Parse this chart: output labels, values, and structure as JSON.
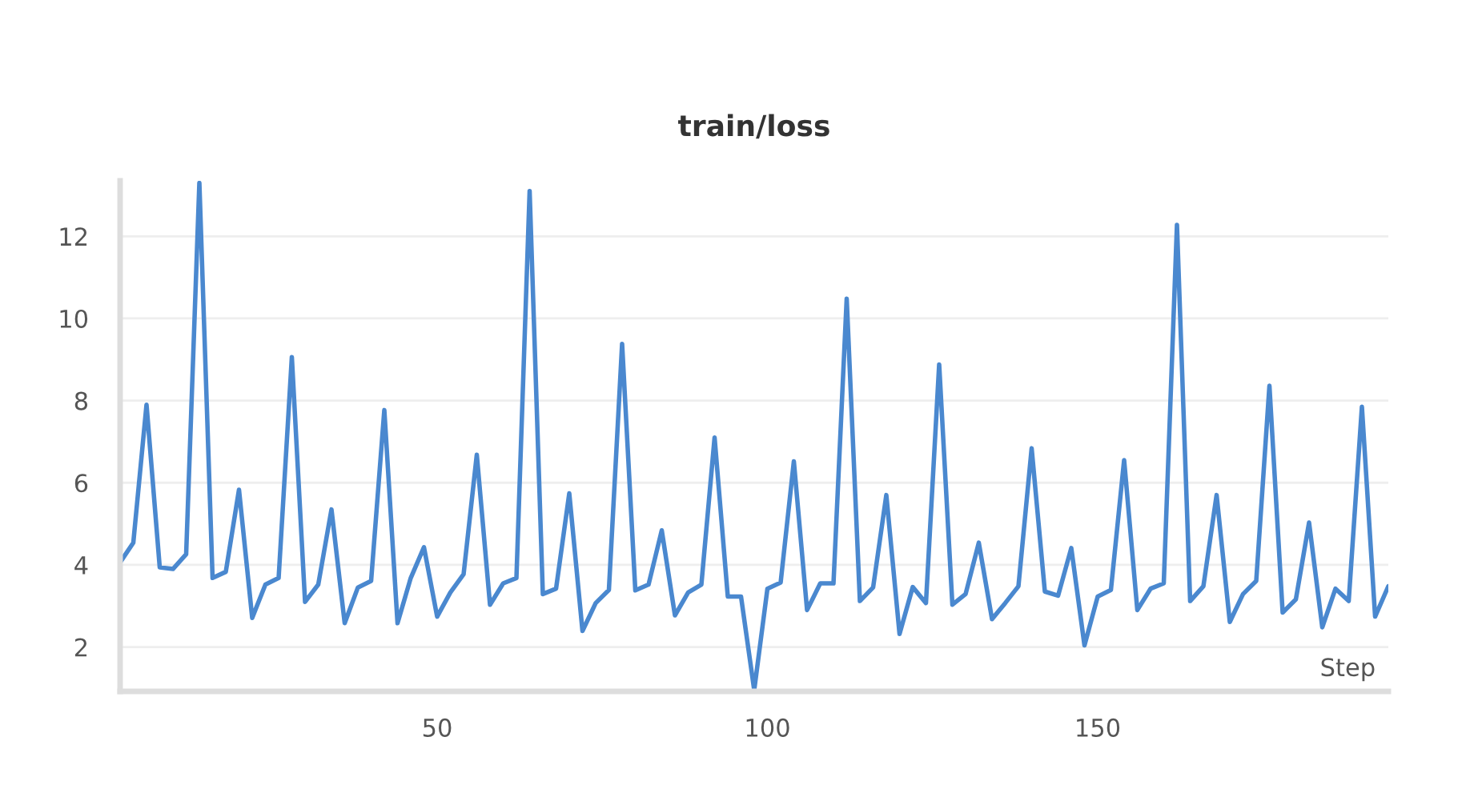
{
  "chart_data": {
    "type": "line",
    "title": "train/loss",
    "xlabel": "Step",
    "x": [
      2,
      4,
      6,
      8,
      10,
      12,
      14,
      16,
      18,
      20,
      22,
      24,
      26,
      28,
      30,
      32,
      34,
      36,
      38,
      40,
      42,
      44,
      46,
      48,
      50,
      52,
      54,
      56,
      58,
      60,
      62,
      64,
      66,
      68,
      70,
      72,
      74,
      76,
      78,
      80,
      82,
      84,
      86,
      88,
      90,
      92,
      94,
      96,
      98,
      100,
      102,
      104,
      106,
      108,
      110,
      112,
      114,
      116,
      118,
      120,
      122,
      124,
      126,
      128,
      130,
      132,
      134,
      136,
      138,
      140,
      142,
      144,
      146,
      148,
      150,
      152,
      154,
      156,
      158,
      160,
      162,
      164,
      166,
      168,
      170,
      172,
      174,
      176,
      178,
      180,
      182,
      184,
      186,
      188,
      190,
      192,
      194
    ],
    "series": [
      {
        "color": "#4a88cf",
        "values": [
          4.06,
          4.54,
          7.9,
          3.94,
          3.9,
          4.26,
          13.3,
          3.68,
          3.83,
          5.83,
          2.71,
          3.52,
          3.68,
          9.06,
          3.1,
          3.52,
          5.35,
          2.58,
          3.45,
          3.61,
          7.77,
          2.58,
          3.68,
          4.43,
          2.74,
          3.33,
          3.77,
          6.68,
          3.03,
          3.55,
          3.68,
          13.1,
          3.29,
          3.42,
          5.74,
          2.39,
          3.07,
          3.39,
          9.38,
          3.38,
          3.52,
          4.84,
          2.77,
          3.33,
          3.52,
          7.1,
          3.23,
          3.23,
          0.95,
          3.42,
          3.57,
          6.52,
          2.9,
          3.55,
          3.55,
          10.48,
          3.12,
          3.45,
          5.7,
          2.32,
          3.46,
          3.07,
          8.88,
          3.03,
          3.29,
          4.54,
          2.68,
          3.07,
          3.48,
          6.84,
          3.35,
          3.25,
          4.41,
          2.04,
          3.23,
          3.39,
          6.55,
          2.9,
          3.42,
          3.55,
          12.28,
          3.12,
          3.48,
          5.7,
          2.61,
          3.29,
          3.61,
          8.36,
          2.84,
          3.16,
          5.03,
          2.48,
          3.42,
          3.12,
          7.85,
          2.74,
          3.48
        ]
      }
    ],
    "xlim": [
      2,
      194
    ],
    "ylim": [
      0.92,
      13.35
    ],
    "xticks": [
      50,
      100,
      150
    ],
    "yticks": [
      2,
      4,
      6,
      8,
      10,
      12
    ],
    "grid": "y",
    "legend": false,
    "line_style": "solid"
  }
}
